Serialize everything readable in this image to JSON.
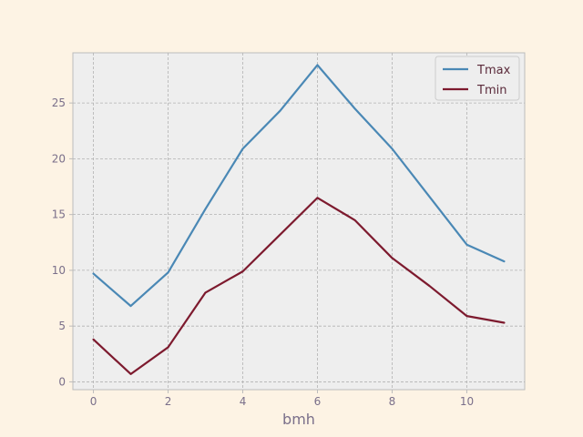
{
  "chart_data": {
    "type": "line",
    "title": "",
    "xlabel": "bmh",
    "ylabel": "",
    "x": [
      0,
      1,
      2,
      3,
      4,
      5,
      6,
      7,
      8,
      9,
      10,
      11
    ],
    "xlim": [
      -0.55,
      11.55
    ],
    "ylim": [
      -0.7,
      29.5
    ],
    "xticks": [
      0,
      2,
      4,
      6,
      8,
      10
    ],
    "yticks": [
      0,
      5,
      10,
      15,
      20,
      25
    ],
    "grid": true,
    "legend_position": "top-right",
    "series": [
      {
        "name": "Tmax",
        "color": "#4a88b5",
        "values": [
          9.7,
          6.8,
          9.8,
          15.5,
          20.9,
          24.3,
          28.4,
          24.5,
          20.9,
          16.6,
          12.3,
          10.8
        ]
      },
      {
        "name": "Tmin",
        "color": "#7d1a2e",
        "values": [
          3.8,
          0.7,
          3.1,
          8.0,
          9.9,
          13.2,
          16.5,
          14.5,
          11.1,
          8.6,
          5.9,
          5.3
        ]
      }
    ]
  },
  "colors": {
    "figure_bg": "#fdf3e4",
    "axes_bg": "#eeeeee",
    "grid": "#b2b2b2",
    "spine": "#bcbcbc",
    "tick_text": "#7a6f8a"
  }
}
